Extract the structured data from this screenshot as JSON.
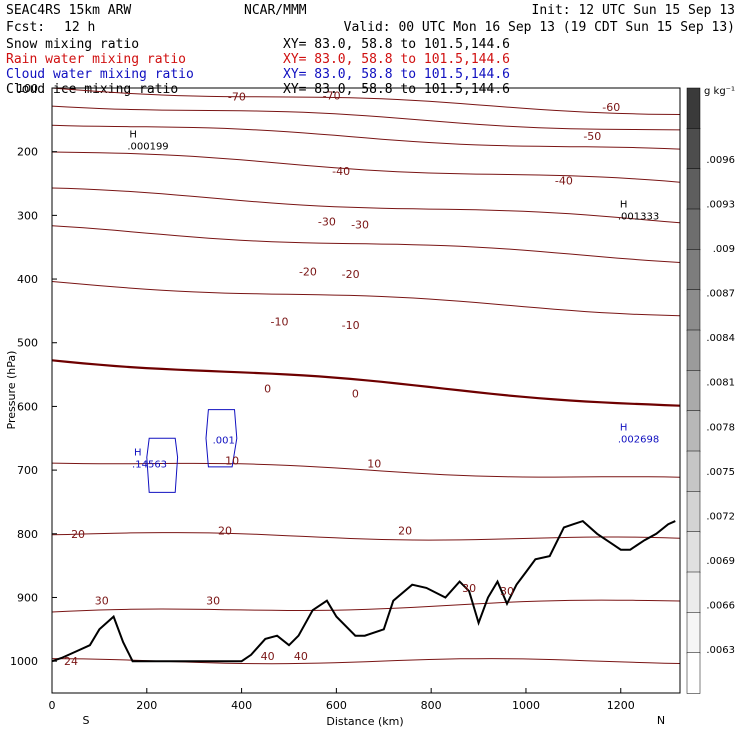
{
  "header": {
    "model": "SEAC4RS 15km ARW",
    "center": "NCAR/MMM",
    "init": "Init: 12 UTC Sun 15 Sep 13",
    "fcst_label": "Fcst:",
    "fcst_value": "12 h",
    "valid": "Valid: 00 UTC Mon 16 Sep 13 (19 CDT Sun 15 Sep 13)"
  },
  "legend": [
    {
      "label": "Snow mixing ratio",
      "xy": "XY=  83.0, 58.8 to 101.5,144.6",
      "color": "#000000"
    },
    {
      "label": "Rain water mixing ratio",
      "xy": "XY=  83.0, 58.8 to 101.5,144.6",
      "color": "#d01010"
    },
    {
      "label": "Cloud water mixing ratio",
      "xy": "XY=  83.0, 58.8 to 101.5,144.6",
      "color": "#1010c0"
    },
    {
      "label": "Cloud ice mixing ratio",
      "xy": "XY=  83.0, 58.8 to 101.5,144.6",
      "color": "#000000"
    }
  ],
  "chart_data": {
    "type": "line",
    "xlabel": "Distance (km)",
    "ylabel": "Pressure (hPa)",
    "xlim": [
      0,
      1325
    ],
    "ylim": [
      1050,
      100
    ],
    "x_ticks": [
      0,
      200,
      400,
      600,
      800,
      1000,
      1200
    ],
    "y_ticks": [
      200,
      300,
      400,
      500,
      600,
      700,
      800,
      900,
      1000
    ],
    "y_top_label": "100",
    "start_label": "S",
    "end_label": "N",
    "temperature_contours": [
      {
        "label": "-70",
        "p_left": 100,
        "p_right": 140
      },
      {
        "label": "-60",
        "p_left": 125,
        "p_right": 168
      },
      {
        "label": "-50",
        "p_left": 155,
        "p_right": 200
      },
      {
        "label": "-40",
        "p_left": 200,
        "p_right": 250
      },
      {
        "label": "-30",
        "p_left": 260,
        "p_right": 310
      },
      {
        "label": "-20",
        "p_left": 320,
        "p_right": 370
      },
      {
        "label": "-10",
        "p_left": 405,
        "p_right": 455
      },
      {
        "label": "0",
        "p_left": 525,
        "p_right": 600,
        "bold": true
      },
      {
        "label": "10",
        "p_left": 685,
        "p_right": 715
      },
      {
        "label": "20",
        "p_left": 800,
        "p_right": 810
      },
      {
        "label": "30",
        "p_left": 925,
        "p_right": 905
      },
      {
        "label": "40",
        "p_left": 1000,
        "p_right": 1000
      }
    ],
    "contour_labels": [
      {
        "text": "-70",
        "x": 390,
        "p": 113
      },
      {
        "text": "-70",
        "x": 590,
        "p": 112
      },
      {
        "text": "-60",
        "x": 1180,
        "p": 130
      },
      {
        "text": "-50",
        "x": 1140,
        "p": 175
      },
      {
        "text": "-40",
        "x": 610,
        "p": 230
      },
      {
        "text": "-40",
        "x": 1080,
        "p": 245
      },
      {
        "text": "-30",
        "x": 580,
        "p": 310
      },
      {
        "text": "-30",
        "x": 650,
        "p": 314
      },
      {
        "text": "-20",
        "x": 540,
        "p": 388
      },
      {
        "text": "-20",
        "x": 630,
        "p": 392
      },
      {
        "text": "-10",
        "x": 480,
        "p": 467
      },
      {
        "text": "-10",
        "x": 630,
        "p": 472
      },
      {
        "text": "0",
        "x": 455,
        "p": 572
      },
      {
        "text": "0",
        "x": 640,
        "p": 580
      },
      {
        "text": "10",
        "x": 380,
        "p": 685
      },
      {
        "text": "10",
        "x": 680,
        "p": 690
      },
      {
        "text": "20",
        "x": 55,
        "p": 800
      },
      {
        "text": "20",
        "x": 365,
        "p": 795
      },
      {
        "text": "20",
        "x": 745,
        "p": 795
      },
      {
        "text": "30",
        "x": 105,
        "p": 905
      },
      {
        "text": "30",
        "x": 340,
        "p": 905
      },
      {
        "text": "30",
        "x": 880,
        "p": 885
      },
      {
        "text": "30",
        "x": 960,
        "p": 890
      },
      {
        "text": "40",
        "x": 455,
        "p": 992
      },
      {
        "text": "40",
        "x": 525,
        "p": 992
      },
      {
        "text": "24",
        "x": 40,
        "p": 1000
      }
    ],
    "extremes": [
      {
        "marker": "H",
        "value": ".000199",
        "x": 180,
        "p": 190,
        "color": "#000000"
      },
      {
        "marker": "H",
        "value": ".001333",
        "x": 1215,
        "p": 300,
        "color": "#000000"
      },
      {
        "marker": "H",
        "value": ".14563",
        "x": 190,
        "p": 690,
        "color": "#1010c0"
      },
      {
        "marker": "",
        "value": ".001",
        "x": 360,
        "p": 652,
        "color": "#1010c0"
      },
      {
        "marker": "H",
        "value": ".002698",
        "x": 1215,
        "p": 650,
        "color": "#1010c0"
      }
    ],
    "cloud_water_contours": [
      {
        "points": [
          [
            205,
            650
          ],
          [
            260,
            650
          ],
          [
            265,
            680
          ],
          [
            260,
            735
          ],
          [
            205,
            735
          ],
          [
            200,
            680
          ]
        ]
      },
      {
        "points": [
          [
            330,
            605
          ],
          [
            385,
            605
          ],
          [
            390,
            650
          ],
          [
            380,
            695
          ],
          [
            330,
            695
          ],
          [
            325,
            650
          ]
        ]
      }
    ],
    "terrain": {
      "x": [
        0,
        20,
        50,
        80,
        100,
        130,
        150,
        170,
        190,
        200,
        260,
        320,
        360,
        400,
        420,
        450,
        475,
        500,
        520,
        550,
        580,
        600,
        640,
        660,
        700,
        720,
        760,
        790,
        830,
        860,
        880,
        900,
        920,
        940,
        960,
        980,
        1000,
        1020,
        1050,
        1080,
        1100,
        1120,
        1150,
        1180,
        1200,
        1220,
        1250,
        1275,
        1300,
        1315
      ],
      "p": [
        1000,
        995,
        985,
        975,
        950,
        930,
        970,
        1000,
        1000,
        1000,
        1000,
        1000,
        1000,
        1000,
        990,
        965,
        960,
        975,
        960,
        920,
        905,
        930,
        960,
        960,
        950,
        905,
        880,
        885,
        900,
        875,
        890,
        940,
        900,
        875,
        910,
        880,
        860,
        840,
        835,
        790,
        785,
        780,
        800,
        815,
        825,
        825,
        810,
        800,
        785,
        780
      ]
    },
    "colorbar": {
      "unit": "g kg⁻¹",
      "labels": [
        ".0096",
        ".0093",
        ".009",
        ".0087",
        ".0084",
        ".0081",
        ".0078",
        ".0075",
        ".0072",
        ".0069",
        ".0066",
        ".0063"
      ],
      "colors": [
        "#3a3a3a",
        "#4d4d4d",
        "#5e5e5e",
        "#6e6e6e",
        "#7d7d7d",
        "#8c8c8c",
        "#9b9b9b",
        "#aaaaaa",
        "#b8b8b8",
        "#c6c6c6",
        "#d3d3d3",
        "#e0e0e0",
        "#ececec",
        "#f6f6f6",
        "#ffffff"
      ]
    },
    "colors": {
      "temperature": "#7a1515",
      "zero_isotherm": "#6e0000",
      "cloud_water": "#1010c0",
      "terrain": "#000000"
    }
  }
}
